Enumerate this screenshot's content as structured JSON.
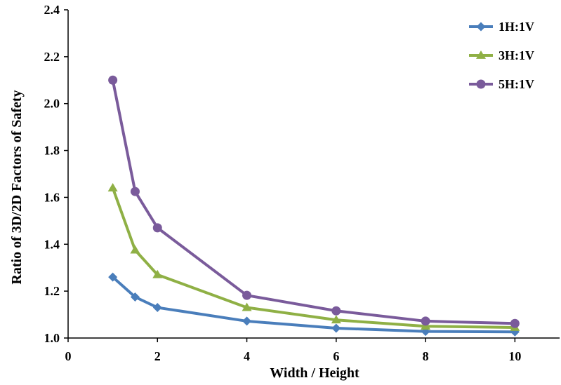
{
  "chart_data": {
    "type": "line",
    "title": "",
    "xlabel": "Width / Height",
    "ylabel": "Ratio of 3D/2D Factors of Safety",
    "xlim": [
      0,
      11
    ],
    "ylim": [
      1.0,
      2.4
    ],
    "xticks": [
      0,
      2,
      4,
      6,
      8,
      10
    ],
    "xtick_labels": [
      "0",
      "2",
      "4",
      "6",
      "8",
      "10"
    ],
    "yticks": [
      1.0,
      1.2,
      1.4,
      1.6,
      1.8,
      2.0,
      2.2,
      2.4
    ],
    "ytick_labels": [
      "1.0",
      "1.2",
      "1.4",
      "1.6",
      "1.8",
      "2.0",
      "2.2",
      "2.4"
    ],
    "grid": false,
    "legend_position": "top-right",
    "x": [
      1,
      1.5,
      2,
      4,
      6,
      8,
      10
    ],
    "series": [
      {
        "name": "1H:1V",
        "values": [
          1.26,
          1.175,
          1.13,
          1.072,
          1.042,
          1.028,
          1.026
        ],
        "color": "#4a7ebb",
        "marker": "diamond"
      },
      {
        "name": "3H:1V",
        "values": [
          1.64,
          1.375,
          1.27,
          1.13,
          1.077,
          1.05,
          1.045
        ],
        "color": "#8fb045",
        "marker": "triangle"
      },
      {
        "name": "5H:1V",
        "values": [
          2.1,
          1.625,
          1.47,
          1.182,
          1.116,
          1.072,
          1.062
        ],
        "color": "#7a5b9b",
        "marker": "circle"
      }
    ]
  }
}
